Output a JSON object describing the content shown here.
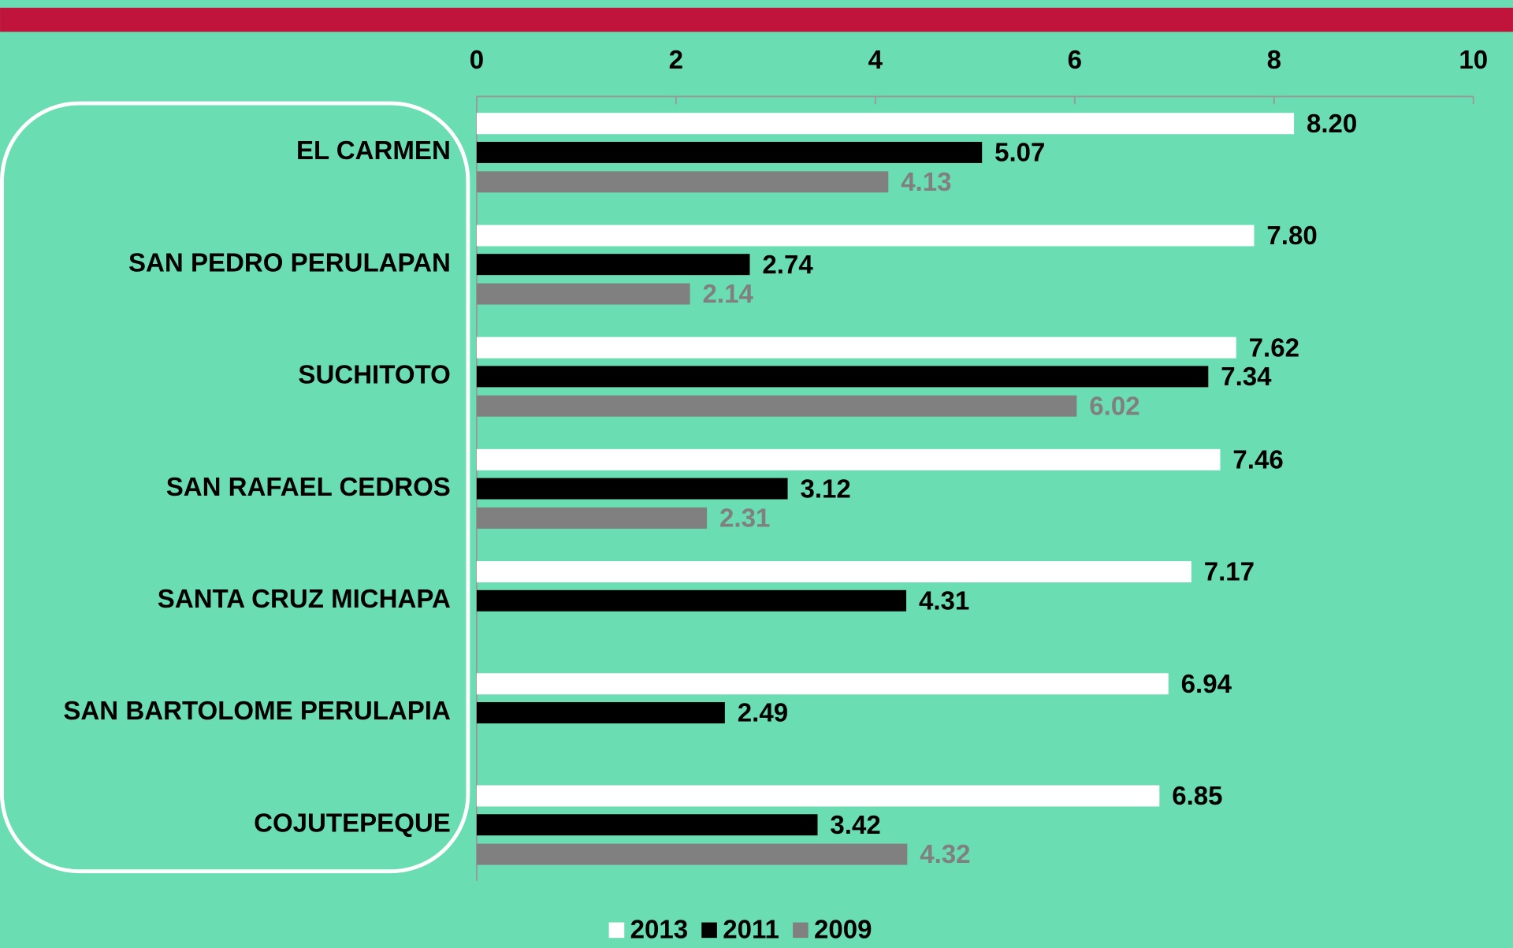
{
  "chart_data": {
    "type": "bar",
    "orientation": "horizontal",
    "categories": [
      "EL CARMEN",
      "SAN PEDRO PERULAPAN",
      "SUCHITOTO",
      "SAN RAFAEL CEDROS",
      "SANTA CRUZ MICHAPA",
      "SAN BARTOLOME PERULAPIA",
      "COJUTEPEQUE"
    ],
    "series": [
      {
        "name": "2013",
        "color": "#ffffff",
        "label_color": "#000000",
        "values": [
          8.2,
          7.8,
          7.62,
          7.46,
          7.17,
          6.94,
          6.85
        ],
        "value_labels": [
          "8.20",
          "7.80",
          "7.62",
          "7.46",
          "7.17",
          "6.94",
          "6.85"
        ]
      },
      {
        "name": "2011",
        "color": "#000000",
        "label_color": "#000000",
        "values": [
          5.07,
          2.74,
          7.34,
          3.12,
          4.31,
          2.49,
          3.42
        ],
        "value_labels": [
          "5.07",
          "2.74",
          "7.34",
          "3.12",
          "4.31",
          "2.49",
          "3.42"
        ]
      },
      {
        "name": "2009",
        "color": "#808080",
        "label_color": "#808080",
        "values": [
          4.13,
          2.14,
          6.02,
          2.31,
          null,
          null,
          4.32
        ],
        "value_labels": [
          "4.13",
          "2.14",
          "6.02",
          "2.31",
          null,
          null,
          "4.32"
        ]
      }
    ],
    "xlim": [
      0,
      10
    ],
    "xticks": [
      0,
      2,
      4,
      6,
      8,
      10
    ],
    "legend": "bottom"
  }
}
